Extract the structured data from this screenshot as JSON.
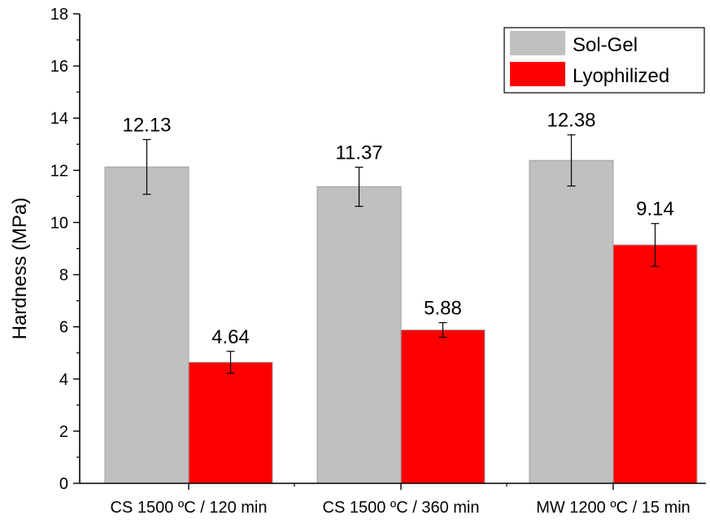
{
  "chart_data": {
    "type": "bar",
    "categories": [
      "CS 1500 ºC / 120 min",
      "CS 1500 ºC / 360 min",
      "MW 1200 ºC / 15 min"
    ],
    "series": [
      {
        "name": "Sol-Gel",
        "color": "#c0c0c0",
        "values": [
          12.13,
          11.37,
          12.38
        ],
        "labels": [
          "12.13",
          "11.37",
          "12.38"
        ],
        "errors": [
          1.05,
          0.75,
          0.98
        ]
      },
      {
        "name": "Lyophilized",
        "color": "#ff0000",
        "values": [
          4.64,
          5.88,
          9.14
        ],
        "labels": [
          "4.64",
          "5.88",
          "9.14"
        ],
        "errors": [
          0.42,
          0.28,
          0.82
        ]
      }
    ],
    "ylabel": "Hardness (MPa)",
    "xlabel": "",
    "ylim": [
      0,
      18
    ],
    "yticks": [
      "0",
      "2",
      "4",
      "6",
      "8",
      "10",
      "12",
      "14",
      "16",
      "18"
    ],
    "grid": false,
    "legend_position": "top-right"
  }
}
